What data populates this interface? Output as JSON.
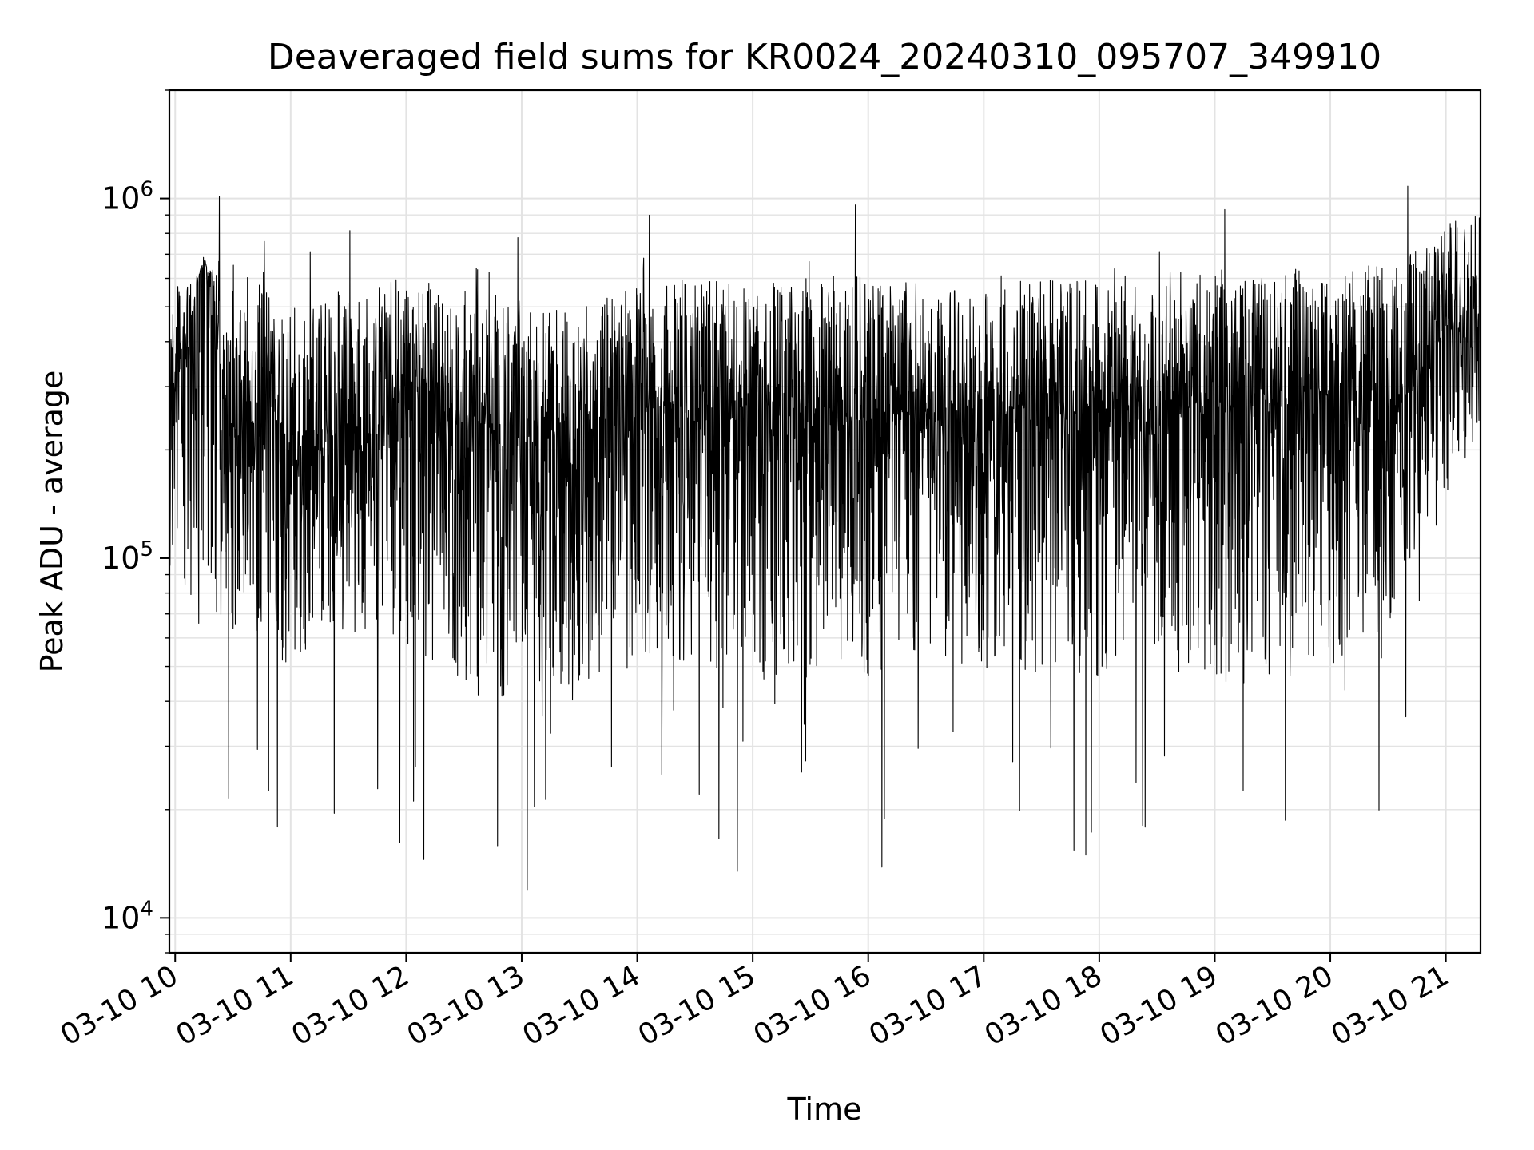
{
  "chart_data": {
    "type": "line",
    "title": "Deaveraged field sums for KR0024_20240310_095707_349910",
    "xlabel": "Time",
    "ylabel": "Peak ADU - average",
    "yscale": "log",
    "xlim": [
      "2024-03-10 09:57",
      "2024-03-10 21:18"
    ],
    "ylim": [
      8000,
      2000000
    ],
    "grid": true,
    "xticks": [
      "2024-03-10 10:00",
      "2024-03-10 11:00",
      "2024-03-10 12:00",
      "2024-03-10 13:00",
      "2024-03-10 14:00",
      "2024-03-10 15:00",
      "2024-03-10 16:00",
      "2024-03-10 17:00",
      "2024-03-10 18:00",
      "2024-03-10 19:00",
      "2024-03-10 20:00",
      "2024-03-10 21:00"
    ],
    "xtick_labels": [
      "03-10 10",
      "03-10 11",
      "03-10 12",
      "03-10 13",
      "03-10 14",
      "03-10 15",
      "03-10 16",
      "03-10 17",
      "03-10 18",
      "03-10 19",
      "03-10 20",
      "03-10 21"
    ],
    "yticks": [
      10000,
      100000,
      1000000
    ],
    "ytick_labels": [
      {
        "base": "10",
        "exp": "4"
      },
      {
        "base": "10",
        "exp": "5"
      },
      {
        "base": "10",
        "exp": "6"
      }
    ],
    "line_color": "#000000",
    "grid_color": "#e3e3e3",
    "series": [
      {
        "x": [
          "2024-03-10 09:57",
          "2024-03-10 10:06",
          "2024-03-10 10:15",
          "2024-03-10 10:24",
          "2024-03-10 10:33",
          "2024-03-10 10:42",
          "2024-03-10 10:51",
          "2024-03-10 11:00",
          "2024-03-10 11:09",
          "2024-03-10 11:18",
          "2024-03-10 11:27",
          "2024-03-10 11:36",
          "2024-03-10 11:45",
          "2024-03-10 11:54",
          "2024-03-10 12:03",
          "2024-03-10 12:12",
          "2024-03-10 12:21",
          "2024-03-10 12:30",
          "2024-03-10 12:39",
          "2024-03-10 12:48",
          "2024-03-10 12:57",
          "2024-03-10 13:06",
          "2024-03-10 13:15",
          "2024-03-10 13:24",
          "2024-03-10 13:33",
          "2024-03-10 13:42",
          "2024-03-10 13:51",
          "2024-03-10 14:00",
          "2024-03-10 14:09",
          "2024-03-10 14:18",
          "2024-03-10 14:27",
          "2024-03-10 14:36",
          "2024-03-10 14:45",
          "2024-03-10 14:54",
          "2024-03-10 15:03",
          "2024-03-10 15:12",
          "2024-03-10 15:21",
          "2024-03-10 15:30",
          "2024-03-10 15:39",
          "2024-03-10 15:48",
          "2024-03-10 15:57",
          "2024-03-10 16:06",
          "2024-03-10 16:15",
          "2024-03-10 16:24",
          "2024-03-10 16:33",
          "2024-03-10 16:42",
          "2024-03-10 16:51",
          "2024-03-10 17:00",
          "2024-03-10 17:09",
          "2024-03-10 17:18",
          "2024-03-10 17:27",
          "2024-03-10 17:36",
          "2024-03-10 17:45",
          "2024-03-10 17:54",
          "2024-03-10 18:03",
          "2024-03-10 18:12",
          "2024-03-10 18:21",
          "2024-03-10 18:30",
          "2024-03-10 18:39",
          "2024-03-10 18:48",
          "2024-03-10 18:57",
          "2024-03-10 19:06",
          "2024-03-10 19:15",
          "2024-03-10 19:24",
          "2024-03-10 19:33",
          "2024-03-10 19:42",
          "2024-03-10 19:51",
          "2024-03-10 20:00",
          "2024-03-10 20:09",
          "2024-03-10 20:18",
          "2024-03-10 20:27",
          "2024-03-10 20:36",
          "2024-03-10 20:45",
          "2024-03-10 20:54",
          "2024-03-10 21:03",
          "2024-03-10 21:12",
          "2024-03-10 21:17"
        ],
        "y": [
          250000,
          380000,
          700000,
          300000,
          220000,
          200000,
          260000,
          190000,
          170000,
          210000,
          230000,
          200000,
          240000,
          280000,
          300000,
          290000,
          250000,
          230000,
          240000,
          210000,
          220000,
          200000,
          230000,
          210000,
          240000,
          220000,
          230000,
          250000,
          260000,
          270000,
          250000,
          280000,
          240000,
          260000,
          250000,
          240000,
          270000,
          230000,
          260000,
          250000,
          240000,
          260000,
          250000,
          270000,
          230000,
          250000,
          260000,
          240000,
          250000,
          270000,
          230000,
          260000,
          250000,
          240000,
          260000,
          280000,
          250000,
          230000,
          270000,
          260000,
          240000,
          250000,
          270000,
          280000,
          260000,
          270000,
          300000,
          280000,
          270000,
          290000,
          260000,
          280000,
          300000,
          420000,
          450000,
          400000,
          480000
        ]
      }
    ],
    "envelope": {
      "x_hours": [
        0.0,
        0.5,
        1.0,
        1.5,
        2.0,
        2.5,
        3.0,
        3.5,
        4.0,
        4.5,
        5.0,
        5.5,
        6.0,
        6.5,
        7.0,
        7.5,
        8.0,
        8.5,
        9.0,
        9.5,
        10.0,
        10.5,
        11.0,
        11.3
      ],
      "upper": [
        550000,
        700000,
        500000,
        560000,
        600000,
        560000,
        520000,
        500000,
        560000,
        600000,
        580000,
        600000,
        620000,
        600000,
        620000,
        600000,
        620000,
        620000,
        640000,
        620000,
        640000,
        660000,
        800000,
        900000
      ],
      "lower": [
        80000,
        60000,
        50000,
        60000,
        55000,
        45000,
        40000,
        45000,
        50000,
        50000,
        45000,
        45000,
        45000,
        50000,
        50000,
        45000,
        45000,
        45000,
        45000,
        45000,
        50000,
        50000,
        120000,
        200000
      ]
    }
  }
}
